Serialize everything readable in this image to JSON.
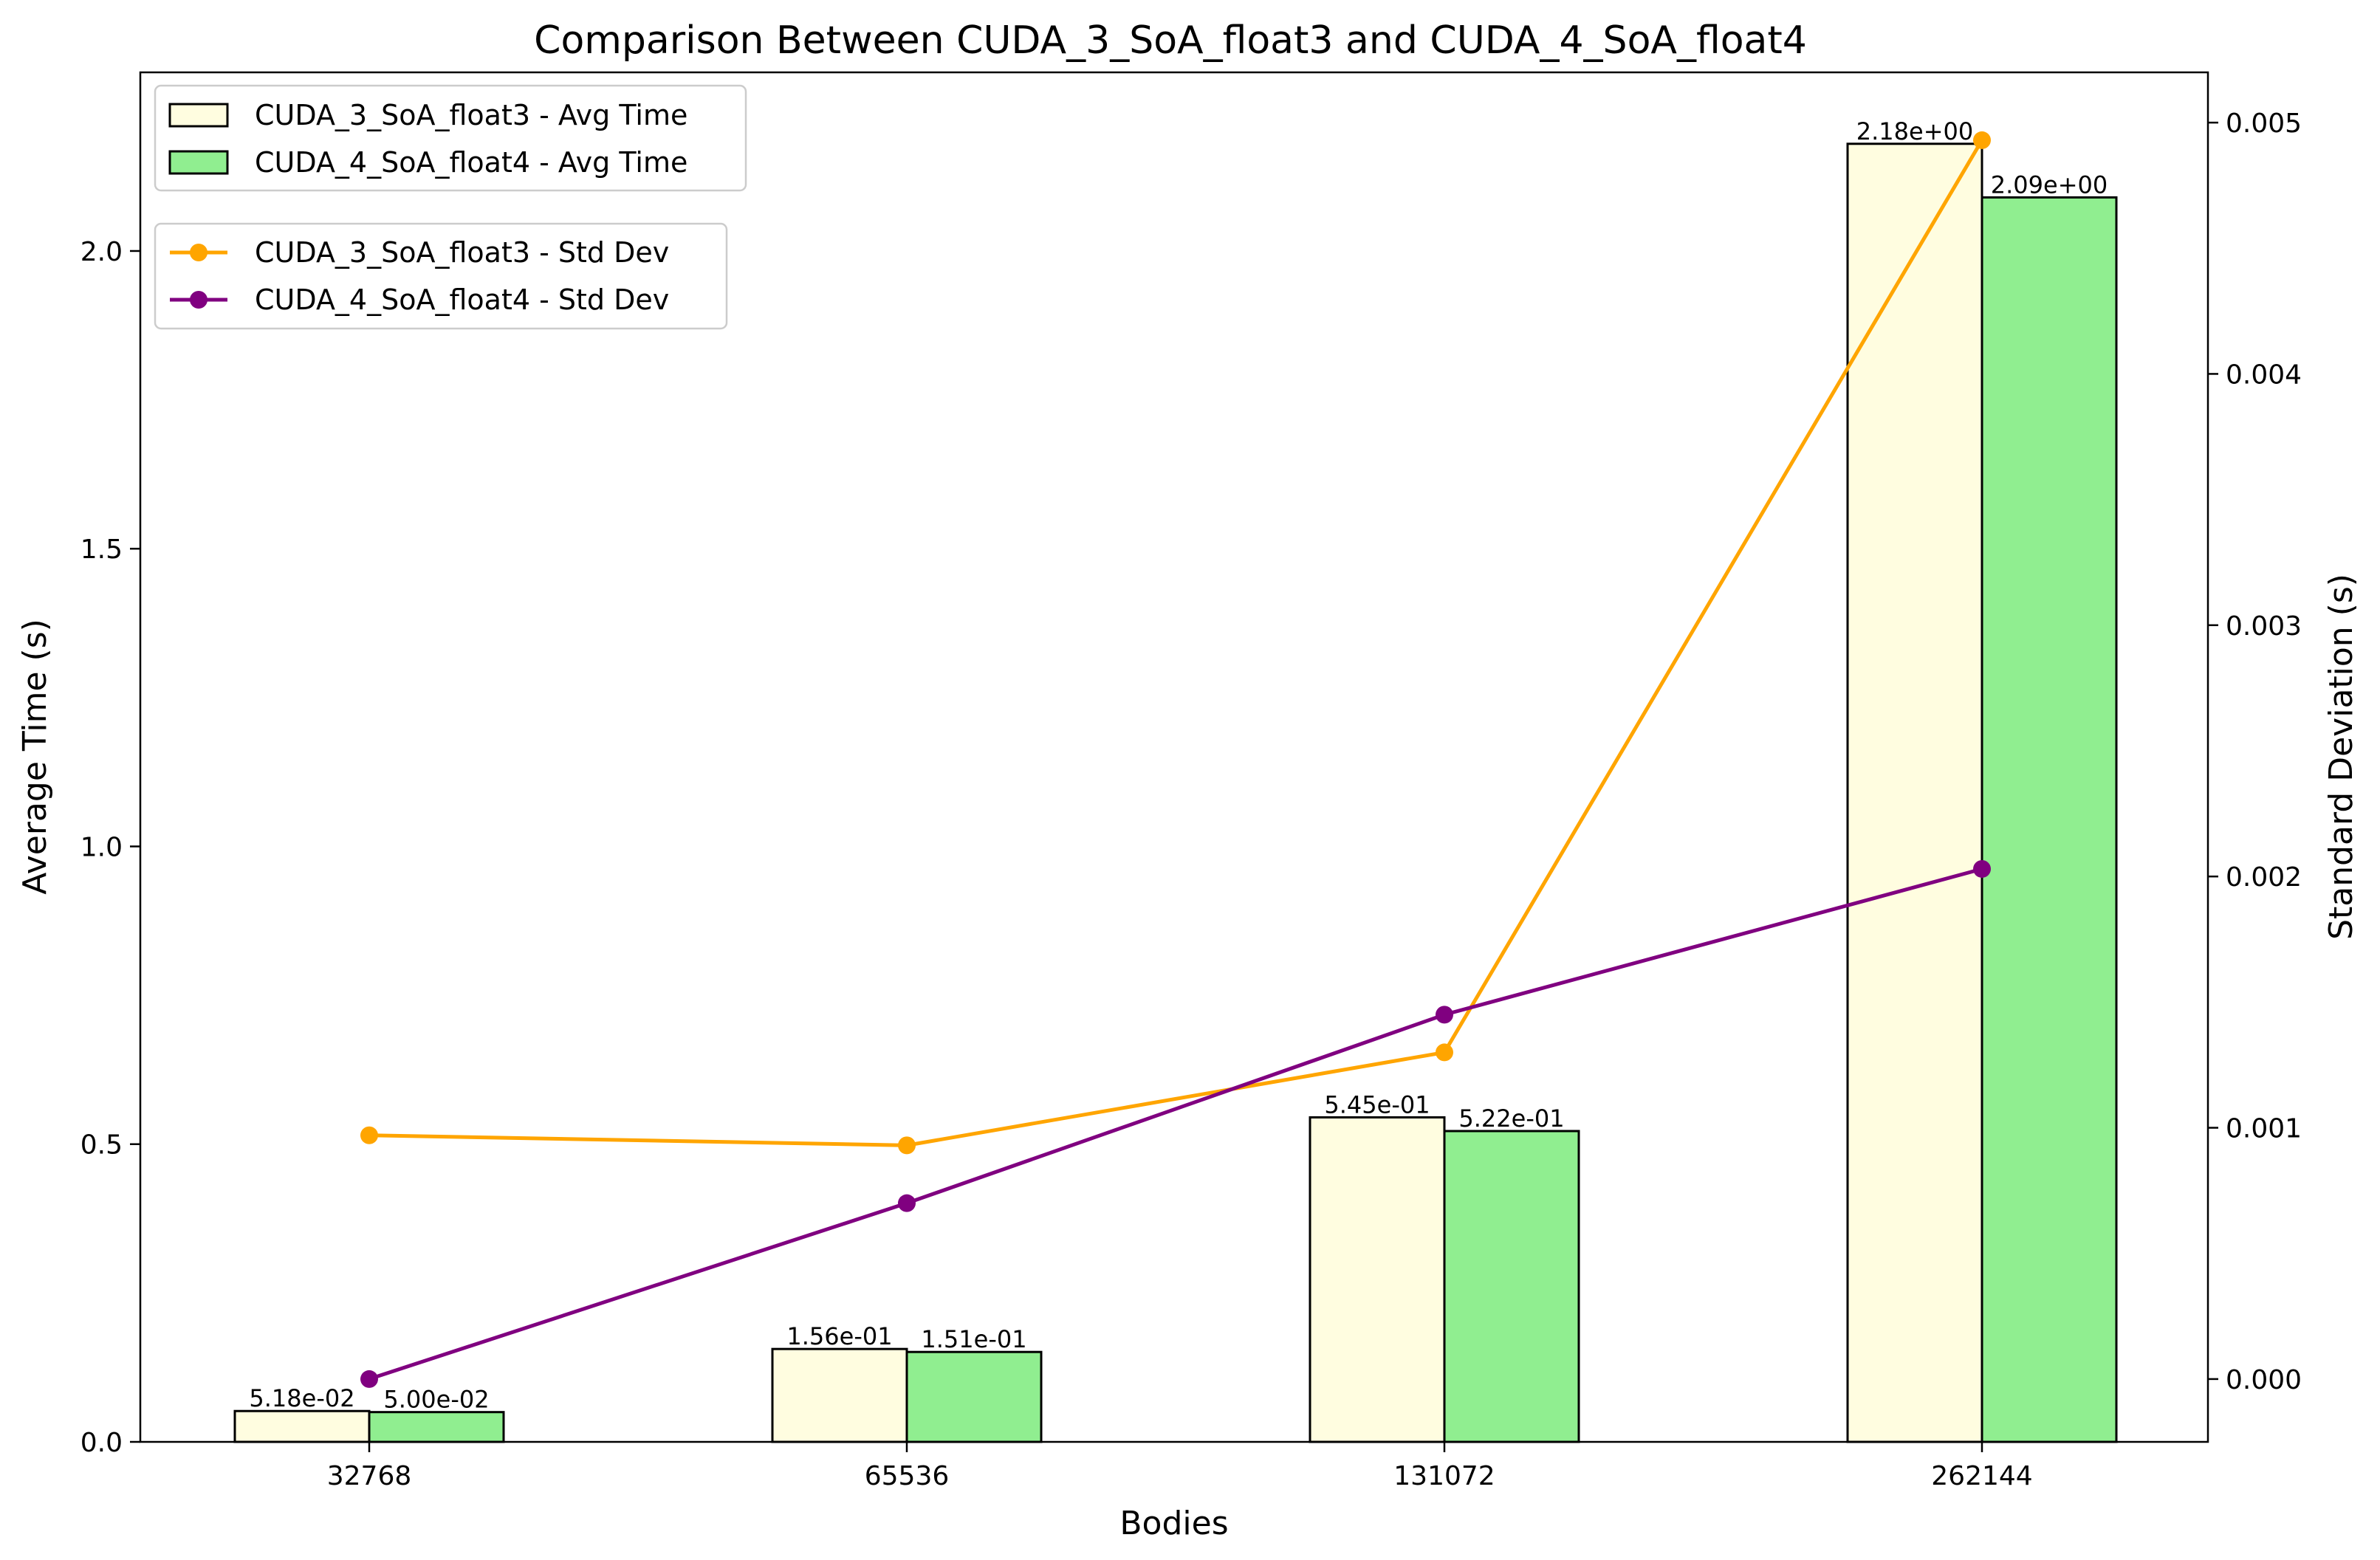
{
  "chart_data": {
    "type": "bar",
    "title": "Comparison Between CUDA_3_SoA_float3 and CUDA_4_SoA_float4",
    "xlabel": "Bodies",
    "ylabel": "Average Time (s)",
    "y2label": "Standard Deviation (s)",
    "categories": [
      "32768",
      "65536",
      "131072",
      "262144"
    ],
    "ylim": [
      0,
      2.3
    ],
    "y2lim": [
      -0.00025,
      0.0052
    ],
    "yticks": [
      "0.0",
      "0.5",
      "1.0",
      "1.5",
      "2.0"
    ],
    "y2ticks": [
      "0.000",
      "0.001",
      "0.002",
      "0.003",
      "0.004",
      "0.005"
    ],
    "bar_series": [
      {
        "name": "CUDA_3_SoA_float3 - Avg Time",
        "color": "#fffde0",
        "values": [
          0.0518,
          0.156,
          0.545,
          2.18
        ],
        "labels": [
          "5.18e-02",
          "1.56e-01",
          "5.45e-01",
          "2.18e+00"
        ]
      },
      {
        "name": "CUDA_4_SoA_float4 - Avg Time",
        "color": "#90ee90",
        "values": [
          0.05,
          0.151,
          0.522,
          2.09
        ],
        "labels": [
          "5.00e-02",
          "1.51e-01",
          "5.22e-01",
          "2.09e+00"
        ]
      }
    ],
    "line_series": [
      {
        "name": "CUDA_3_SoA_float3 - Std Dev",
        "color": "#ffa500",
        "values": [
          0.00097,
          0.00093,
          0.0013,
          0.00493
        ]
      },
      {
        "name": "CUDA_4_SoA_float4 - Std Dev",
        "color": "#800080",
        "values": [
          0.0,
          0.0007,
          0.00145,
          0.00203
        ]
      }
    ],
    "grid": false,
    "legend_placement": "top-left"
  }
}
